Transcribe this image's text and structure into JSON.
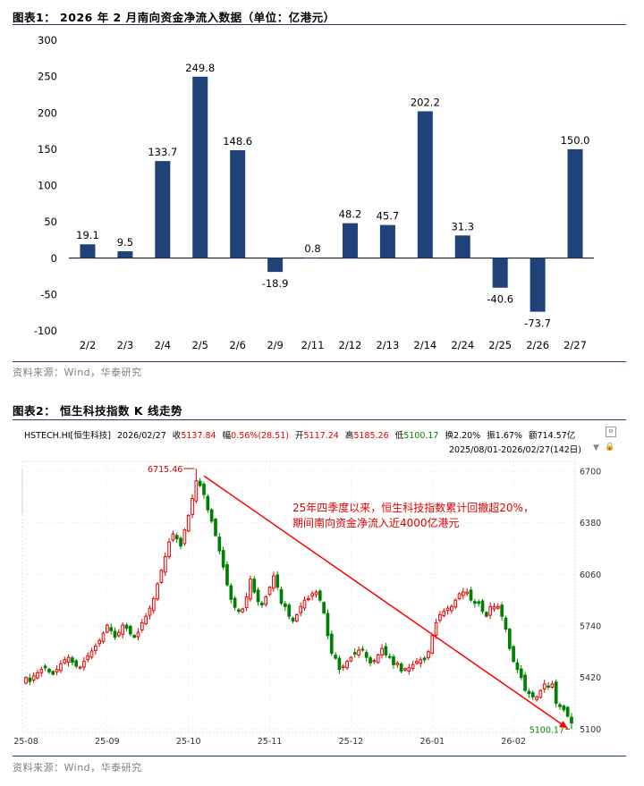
{
  "figure1": {
    "title": "图表1：  2026 年 2 月南向资金净流入数据（单位：亿港元）",
    "source": "资料来源：Wind，华泰研究"
  },
  "figure2": {
    "title": "图表2：  恒生科技指数 K 线走势",
    "source": "资料来源：Wind，华泰研究",
    "info": {
      "code": "HSTECH.HI[恒生科技]",
      "date": "2026/02/27",
      "close_label": "收",
      "close": "5137.84",
      "change_label": "幅",
      "change": "0.56%(28.51)",
      "open_label": "开",
      "open": "5117.24",
      "high_label": "高",
      "high": "5185.26",
      "low_label": "低",
      "low": "5100.17",
      "turnover_label": "换",
      "turnover": "2.20%",
      "amplitude_label": "振",
      "amplitude": "1.67%",
      "amount_label": "额",
      "amount": "714.57亿",
      "range": "2025/08/01-2026/02/27(142日)"
    },
    "annotation": {
      "line1": "25年四季度以来，恒生科技指数累计回撤超20%，",
      "line2": "期间南向资金净流入近4000亿港元"
    },
    "colors": {
      "up": "#e60000",
      "down": "#008000",
      "arrow": "#ff0000"
    }
  },
  "chart_data": [
    {
      "type": "bar",
      "title": "2026 年 2 月南向资金净流入数据（单位：亿港元）",
      "categories": [
        "2/2",
        "2/3",
        "2/4",
        "2/5",
        "2/6",
        "2/9",
        "2/11",
        "2/12",
        "2/13",
        "2/14",
        "2/24",
        "2/25",
        "2/26",
        "2/27"
      ],
      "values": [
        19.1,
        9.5,
        133.7,
        249.8,
        148.6,
        -18.9,
        0.8,
        48.2,
        45.7,
        202.2,
        31.3,
        -40.6,
        -73.7,
        150.0
      ],
      "value_labels": [
        "19.1",
        "9.5",
        "133.7",
        "249.8",
        "148.6",
        "-18.9",
        "0.8",
        "48.2",
        "45.7",
        "202.2",
        "31.3",
        "-40.6",
        "-73.7",
        "150.0"
      ],
      "ylim": [
        -100,
        300
      ],
      "yticks": [
        "300",
        "250",
        "200",
        "150",
        "100",
        "50",
        "0",
        "-50",
        "-100"
      ],
      "bar_color": "#1f4378",
      "grid": false
    },
    {
      "type": "candlestick",
      "title": "恒生科技指数 K 线走势",
      "series_name": "HSTECH.HI[恒生科技]",
      "ylim": [
        5080,
        6760
      ],
      "yticks": [
        "6700",
        "6380",
        "6060",
        "5740",
        "5420",
        "5100"
      ],
      "xticks": [
        "25-08",
        "25-09",
        "25-10",
        "25-11",
        "25-12",
        "26-01",
        "26-02"
      ],
      "xtick_index": [
        0,
        21,
        42,
        63,
        84,
        105,
        126
      ],
      "n_days": 142,
      "max_label": "6715.46",
      "max_index": 44,
      "min_label": "5100.17",
      "min_index": 141,
      "trend_line": {
        "from_index": 46,
        "from_value": 6670,
        "to_index": 140,
        "to_value": 5105
      },
      "closes": [
        5420,
        5395,
        5430,
        5450,
        5470,
        5480,
        5455,
        5440,
        5470,
        5505,
        5530,
        5545,
        5515,
        5490,
        5485,
        5520,
        5555,
        5585,
        5615,
        5650,
        5695,
        5745,
        5710,
        5670,
        5700,
        5745,
        5725,
        5690,
        5670,
        5700,
        5760,
        5800,
        5850,
        5910,
        6000,
        6085,
        6170,
        6260,
        6310,
        6280,
        6235,
        6335,
        6425,
        6530,
        6640,
        6610,
        6555,
        6460,
        6390,
        6300,
        6205,
        6105,
        5995,
        5905,
        5855,
        5830,
        5845,
        5920,
        6030,
        5950,
        5890,
        5870,
        5920,
        5980,
        6050,
        5980,
        5880,
        5860,
        5800,
        5770,
        5810,
        5860,
        5900,
        5910,
        5940,
        5950,
        5900,
        5820,
        5680,
        5570,
        5540,
        5470,
        5490,
        5520,
        5545,
        5565,
        5590,
        5590,
        5545,
        5510,
        5525,
        5560,
        5600,
        5560,
        5545,
        5500,
        5510,
        5460,
        5475,
        5480,
        5500,
        5520,
        5530,
        5530,
        5580,
        5680,
        5760,
        5810,
        5830,
        5850,
        5860,
        5900,
        5940,
        5950,
        5950,
        5900,
        5880,
        5880,
        5830,
        5800,
        5860,
        5860,
        5860,
        5800,
        5720,
        5600,
        5520,
        5470,
        5420,
        5340,
        5320,
        5300,
        5300,
        5340,
        5380,
        5360,
        5380,
        5260,
        5240,
        5220,
        5180,
        5138
      ]
    }
  ]
}
